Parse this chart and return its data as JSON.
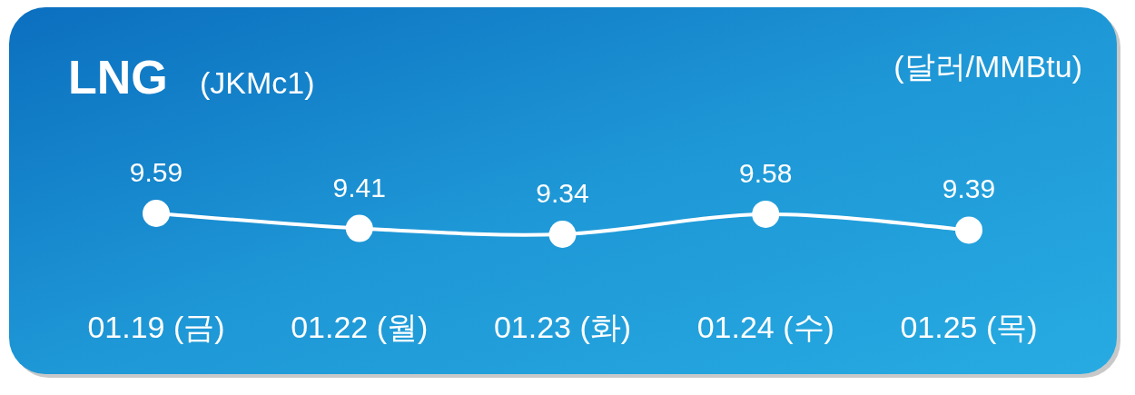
{
  "chart_data": {
    "type": "line",
    "title": "LNG",
    "subtitle": "(JKMc1)",
    "ylabel": "(달러/MMBtu)",
    "categories": [
      "01.19 (금)",
      "01.22 (월)",
      "01.23 (화)",
      "01.24 (수)",
      "01.25 (목)"
    ],
    "values": [
      9.59,
      9.41,
      9.34,
      9.58,
      9.39
    ],
    "color": "#ffffff",
    "marker": "circle",
    "line_style": "solid",
    "data_labels": true,
    "legend": false,
    "grid": false
  }
}
